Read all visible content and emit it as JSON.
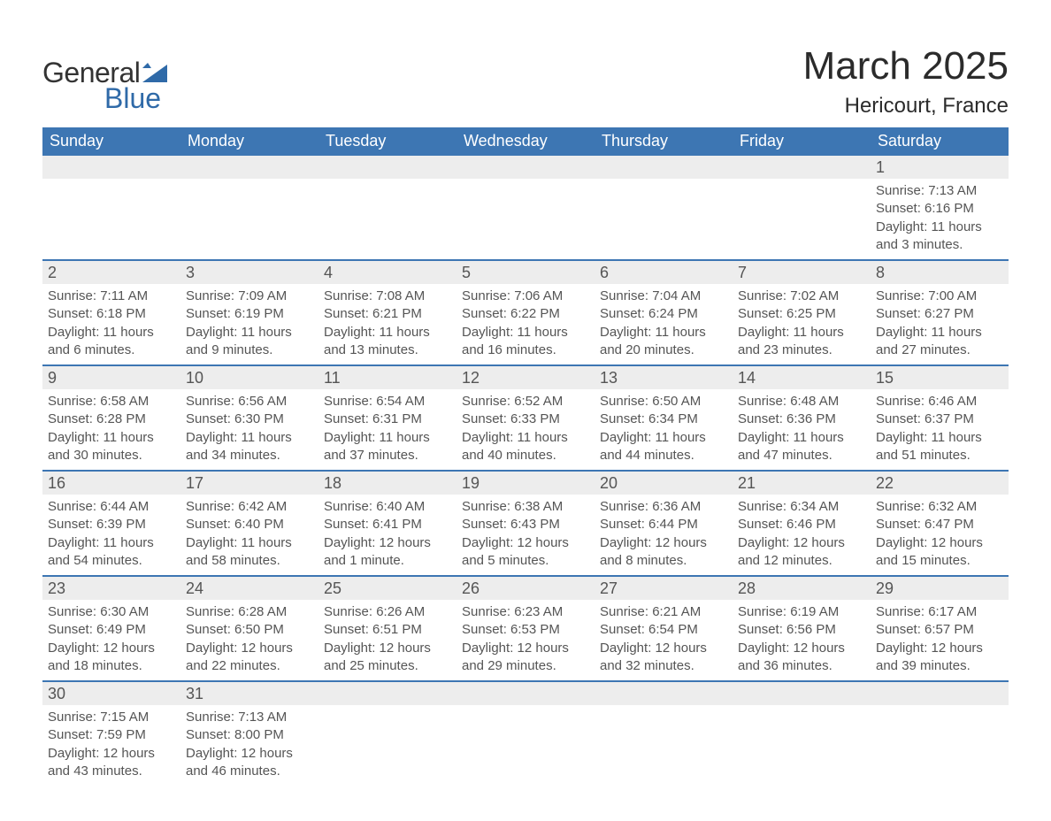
{
  "logo": {
    "text1": "General",
    "text2": "Blue",
    "text1_color": "#333333",
    "text2_color": "#2f6aa8",
    "icon_color": "#2f6aa8"
  },
  "title": "March 2025",
  "location": "Hericourt, France",
  "colors": {
    "header_bg": "#3d76b3",
    "header_text": "#ffffff",
    "daynum_bg": "#ededed",
    "row_border": "#3d76b3",
    "body_text": "#555555",
    "page_bg": "#ffffff"
  },
  "day_headers": [
    "Sunday",
    "Monday",
    "Tuesday",
    "Wednesday",
    "Thursday",
    "Friday",
    "Saturday"
  ],
  "weeks": [
    {
      "days": [
        {
          "num": "",
          "sunrise": "",
          "sunset": "",
          "daylight": ""
        },
        {
          "num": "",
          "sunrise": "",
          "sunset": "",
          "daylight": ""
        },
        {
          "num": "",
          "sunrise": "",
          "sunset": "",
          "daylight": ""
        },
        {
          "num": "",
          "sunrise": "",
          "sunset": "",
          "daylight": ""
        },
        {
          "num": "",
          "sunrise": "",
          "sunset": "",
          "daylight": ""
        },
        {
          "num": "",
          "sunrise": "",
          "sunset": "",
          "daylight": ""
        },
        {
          "num": "1",
          "sunrise": "Sunrise: 7:13 AM",
          "sunset": "Sunset: 6:16 PM",
          "daylight": "Daylight: 11 hours and 3 minutes."
        }
      ]
    },
    {
      "days": [
        {
          "num": "2",
          "sunrise": "Sunrise: 7:11 AM",
          "sunset": "Sunset: 6:18 PM",
          "daylight": "Daylight: 11 hours and 6 minutes."
        },
        {
          "num": "3",
          "sunrise": "Sunrise: 7:09 AM",
          "sunset": "Sunset: 6:19 PM",
          "daylight": "Daylight: 11 hours and 9 minutes."
        },
        {
          "num": "4",
          "sunrise": "Sunrise: 7:08 AM",
          "sunset": "Sunset: 6:21 PM",
          "daylight": "Daylight: 11 hours and 13 minutes."
        },
        {
          "num": "5",
          "sunrise": "Sunrise: 7:06 AM",
          "sunset": "Sunset: 6:22 PM",
          "daylight": "Daylight: 11 hours and 16 minutes."
        },
        {
          "num": "6",
          "sunrise": "Sunrise: 7:04 AM",
          "sunset": "Sunset: 6:24 PM",
          "daylight": "Daylight: 11 hours and 20 minutes."
        },
        {
          "num": "7",
          "sunrise": "Sunrise: 7:02 AM",
          "sunset": "Sunset: 6:25 PM",
          "daylight": "Daylight: 11 hours and 23 minutes."
        },
        {
          "num": "8",
          "sunrise": "Sunrise: 7:00 AM",
          "sunset": "Sunset: 6:27 PM",
          "daylight": "Daylight: 11 hours and 27 minutes."
        }
      ]
    },
    {
      "days": [
        {
          "num": "9",
          "sunrise": "Sunrise: 6:58 AM",
          "sunset": "Sunset: 6:28 PM",
          "daylight": "Daylight: 11 hours and 30 minutes."
        },
        {
          "num": "10",
          "sunrise": "Sunrise: 6:56 AM",
          "sunset": "Sunset: 6:30 PM",
          "daylight": "Daylight: 11 hours and 34 minutes."
        },
        {
          "num": "11",
          "sunrise": "Sunrise: 6:54 AM",
          "sunset": "Sunset: 6:31 PM",
          "daylight": "Daylight: 11 hours and 37 minutes."
        },
        {
          "num": "12",
          "sunrise": "Sunrise: 6:52 AM",
          "sunset": "Sunset: 6:33 PM",
          "daylight": "Daylight: 11 hours and 40 minutes."
        },
        {
          "num": "13",
          "sunrise": "Sunrise: 6:50 AM",
          "sunset": "Sunset: 6:34 PM",
          "daylight": "Daylight: 11 hours and 44 minutes."
        },
        {
          "num": "14",
          "sunrise": "Sunrise: 6:48 AM",
          "sunset": "Sunset: 6:36 PM",
          "daylight": "Daylight: 11 hours and 47 minutes."
        },
        {
          "num": "15",
          "sunrise": "Sunrise: 6:46 AM",
          "sunset": "Sunset: 6:37 PM",
          "daylight": "Daylight: 11 hours and 51 minutes."
        }
      ]
    },
    {
      "days": [
        {
          "num": "16",
          "sunrise": "Sunrise: 6:44 AM",
          "sunset": "Sunset: 6:39 PM",
          "daylight": "Daylight: 11 hours and 54 minutes."
        },
        {
          "num": "17",
          "sunrise": "Sunrise: 6:42 AM",
          "sunset": "Sunset: 6:40 PM",
          "daylight": "Daylight: 11 hours and 58 minutes."
        },
        {
          "num": "18",
          "sunrise": "Sunrise: 6:40 AM",
          "sunset": "Sunset: 6:41 PM",
          "daylight": "Daylight: 12 hours and 1 minute."
        },
        {
          "num": "19",
          "sunrise": "Sunrise: 6:38 AM",
          "sunset": "Sunset: 6:43 PM",
          "daylight": "Daylight: 12 hours and 5 minutes."
        },
        {
          "num": "20",
          "sunrise": "Sunrise: 6:36 AM",
          "sunset": "Sunset: 6:44 PM",
          "daylight": "Daylight: 12 hours and 8 minutes."
        },
        {
          "num": "21",
          "sunrise": "Sunrise: 6:34 AM",
          "sunset": "Sunset: 6:46 PM",
          "daylight": "Daylight: 12 hours and 12 minutes."
        },
        {
          "num": "22",
          "sunrise": "Sunrise: 6:32 AM",
          "sunset": "Sunset: 6:47 PM",
          "daylight": "Daylight: 12 hours and 15 minutes."
        }
      ]
    },
    {
      "days": [
        {
          "num": "23",
          "sunrise": "Sunrise: 6:30 AM",
          "sunset": "Sunset: 6:49 PM",
          "daylight": "Daylight: 12 hours and 18 minutes."
        },
        {
          "num": "24",
          "sunrise": "Sunrise: 6:28 AM",
          "sunset": "Sunset: 6:50 PM",
          "daylight": "Daylight: 12 hours and 22 minutes."
        },
        {
          "num": "25",
          "sunrise": "Sunrise: 6:26 AM",
          "sunset": "Sunset: 6:51 PM",
          "daylight": "Daylight: 12 hours and 25 minutes."
        },
        {
          "num": "26",
          "sunrise": "Sunrise: 6:23 AM",
          "sunset": "Sunset: 6:53 PM",
          "daylight": "Daylight: 12 hours and 29 minutes."
        },
        {
          "num": "27",
          "sunrise": "Sunrise: 6:21 AM",
          "sunset": "Sunset: 6:54 PM",
          "daylight": "Daylight: 12 hours and 32 minutes."
        },
        {
          "num": "28",
          "sunrise": "Sunrise: 6:19 AM",
          "sunset": "Sunset: 6:56 PM",
          "daylight": "Daylight: 12 hours and 36 minutes."
        },
        {
          "num": "29",
          "sunrise": "Sunrise: 6:17 AM",
          "sunset": "Sunset: 6:57 PM",
          "daylight": "Daylight: 12 hours and 39 minutes."
        }
      ]
    },
    {
      "days": [
        {
          "num": "30",
          "sunrise": "Sunrise: 7:15 AM",
          "sunset": "Sunset: 7:59 PM",
          "daylight": "Daylight: 12 hours and 43 minutes."
        },
        {
          "num": "31",
          "sunrise": "Sunrise: 7:13 AM",
          "sunset": "Sunset: 8:00 PM",
          "daylight": "Daylight: 12 hours and 46 minutes."
        },
        {
          "num": "",
          "sunrise": "",
          "sunset": "",
          "daylight": ""
        },
        {
          "num": "",
          "sunrise": "",
          "sunset": "",
          "daylight": ""
        },
        {
          "num": "",
          "sunrise": "",
          "sunset": "",
          "daylight": ""
        },
        {
          "num": "",
          "sunrise": "",
          "sunset": "",
          "daylight": ""
        },
        {
          "num": "",
          "sunrise": "",
          "sunset": "",
          "daylight": ""
        }
      ]
    }
  ]
}
